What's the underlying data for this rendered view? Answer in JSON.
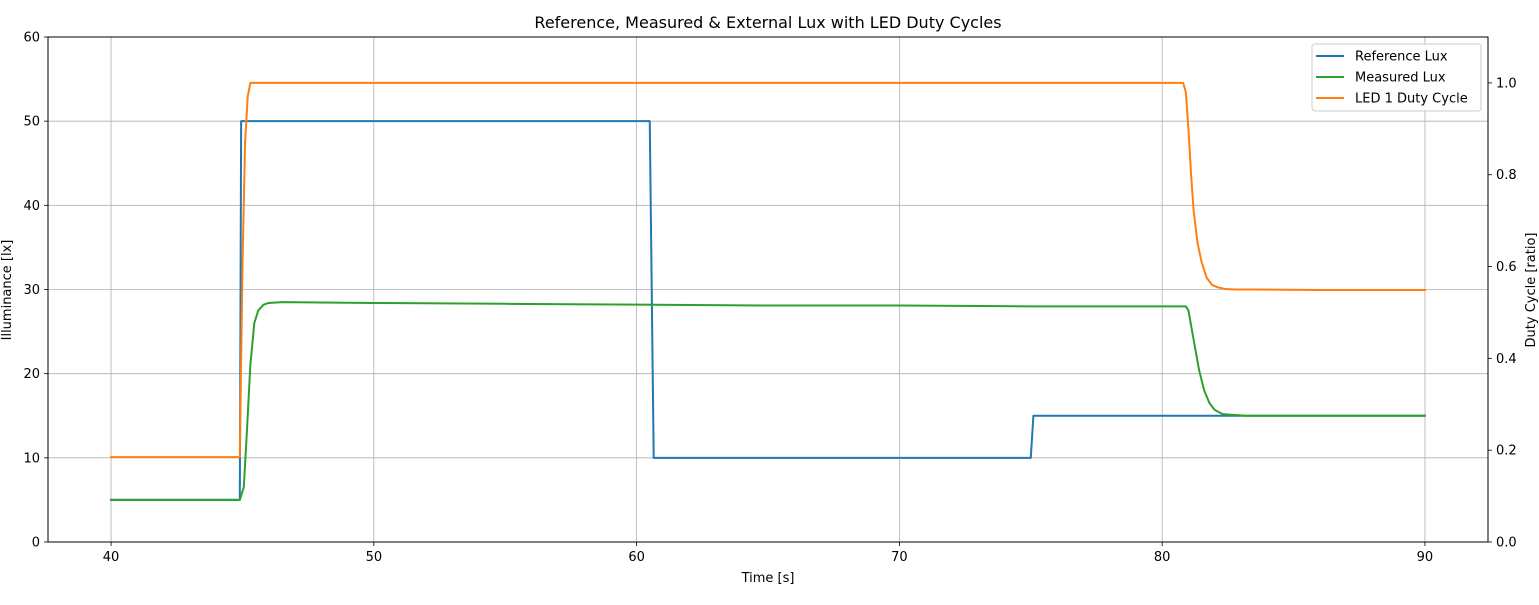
{
  "chart_data": {
    "type": "line",
    "title": "Reference, Measured & External Lux with LED Duty Cycles",
    "xlabel": "Time [s]",
    "ylabel": "Illuminance [lx]",
    "y2label": "Duty Cycle [ratio]",
    "xlim": [
      37.6,
      92.4
    ],
    "ylim": [
      0,
      60
    ],
    "y2lim": [
      0,
      1.1
    ],
    "xticks": [
      40,
      50,
      60,
      70,
      80,
      90
    ],
    "yticks": [
      0,
      10,
      20,
      30,
      40,
      50,
      60
    ],
    "y2ticks": [
      0.0,
      0.2,
      0.4,
      0.6,
      0.8,
      1.0
    ],
    "grid": true,
    "legend_position": "top-right",
    "series": [
      {
        "name": "Reference Lux",
        "axis": "left",
        "color": "#1f77b4",
        "x": [
          40,
          44.9,
          44.95,
          60.5,
          60.65,
          75.0,
          75.1,
          90
        ],
        "y": [
          5,
          5,
          50,
          50,
          10,
          10,
          15,
          15
        ]
      },
      {
        "name": "Measured Lux",
        "axis": "left",
        "color": "#2ca02c",
        "x": [
          40,
          44.9,
          45.05,
          45.15,
          45.3,
          45.45,
          45.6,
          45.8,
          46.0,
          46.5,
          50,
          55,
          60,
          65,
          70,
          75,
          80,
          80.9,
          81.0,
          81.2,
          81.4,
          81.6,
          81.8,
          82.0,
          82.3,
          82.7,
          83.2,
          85,
          90
        ],
        "y": [
          5,
          5,
          6.5,
          12,
          21,
          26,
          27.5,
          28.2,
          28.4,
          28.5,
          28.4,
          28.3,
          28.2,
          28.1,
          28.1,
          28.0,
          28.0,
          28.0,
          27.5,
          24,
          20.5,
          18,
          16.5,
          15.7,
          15.2,
          15.1,
          15.0,
          15.0,
          15.0
        ]
      },
      {
        "name": "LED 1 Duty Cycle",
        "axis": "right",
        "color": "#ff7f0e",
        "x": [
          40,
          44.9,
          45.0,
          45.1,
          45.2,
          45.3,
          60,
          70,
          80.8,
          80.9,
          81.0,
          81.1,
          81.2,
          81.35,
          81.5,
          81.7,
          81.9,
          82.1,
          82.4,
          82.8,
          83.5,
          86,
          90
        ],
        "y": [
          0.185,
          0.185,
          0.6,
          0.87,
          0.97,
          1.0,
          1.0,
          1.0,
          1.0,
          0.98,
          0.9,
          0.8,
          0.72,
          0.65,
          0.61,
          0.575,
          0.56,
          0.555,
          0.551,
          0.55,
          0.55,
          0.549,
          0.549
        ]
      }
    ]
  }
}
